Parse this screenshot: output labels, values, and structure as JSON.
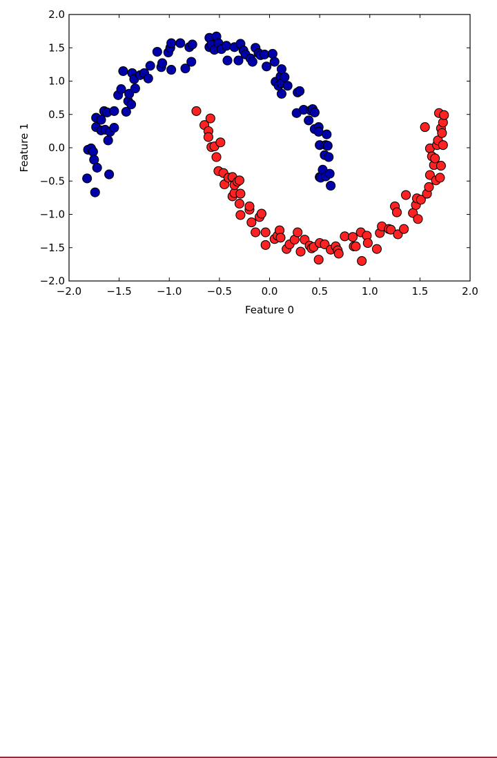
{
  "chart_data": {
    "type": "scatter",
    "title": "",
    "xlabel": "Feature 0",
    "ylabel": "Feature 1",
    "xlim": [
      -2.0,
      2.0
    ],
    "ylim": [
      -2.0,
      2.0
    ],
    "xticks": [
      "−2.0",
      "−1.5",
      "−1.0",
      "−0.5",
      "0.0",
      "0.5",
      "1.0",
      "1.5",
      "2.0"
    ],
    "yticks": [
      "2.0",
      "1.5",
      "1.0",
      "0.5",
      "0.0",
      "−0.5",
      "−1.0",
      "−1.5",
      "−2.0"
    ],
    "xtick_values": [
      -2.0,
      -1.5,
      -1.0,
      -0.5,
      0.0,
      0.5,
      1.0,
      1.5,
      2.0
    ],
    "ytick_values": [
      2.0,
      1.5,
      1.0,
      0.5,
      0.0,
      -0.5,
      -1.0,
      -1.5,
      -2.0
    ],
    "grid": false,
    "legend": "none",
    "series": [
      {
        "color": "#0000aa",
        "points": [
          [
            -1.81,
            -0.03
          ],
          [
            -1.78,
            -0.01
          ],
          [
            -1.76,
            -0.06
          ],
          [
            -1.75,
            -0.18
          ],
          [
            -1.82,
            -0.46
          ],
          [
            -1.74,
            -0.67
          ],
          [
            -1.72,
            -0.3
          ],
          [
            -1.6,
            -0.4
          ],
          [
            -1.73,
            0.45
          ],
          [
            -1.73,
            0.31
          ],
          [
            -1.68,
            0.26
          ],
          [
            -1.68,
            0.42
          ],
          [
            -1.64,
            0.27
          ],
          [
            -1.65,
            0.55
          ],
          [
            -1.62,
            0.53
          ],
          [
            -1.61,
            0.11
          ],
          [
            -1.59,
            0.24
          ],
          [
            -1.55,
            0.55
          ],
          [
            -1.55,
            0.3
          ],
          [
            -1.51,
            0.79
          ],
          [
            -1.48,
            0.88
          ],
          [
            -1.46,
            1.15
          ],
          [
            -1.43,
            0.54
          ],
          [
            -1.41,
            0.7
          ],
          [
            -1.4,
            0.81
          ],
          [
            -1.38,
            0.65
          ],
          [
            -1.37,
            1.12
          ],
          [
            -1.35,
            1.03
          ],
          [
            -1.34,
            0.89
          ],
          [
            -1.29,
            1.09
          ],
          [
            -1.25,
            1.12
          ],
          [
            -1.21,
            1.04
          ],
          [
            -1.19,
            1.23
          ],
          [
            -1.12,
            1.44
          ],
          [
            -1.08,
            1.21
          ],
          [
            -1.07,
            1.27
          ],
          [
            -1.01,
            1.43
          ],
          [
            -0.99,
            1.5
          ],
          [
            -0.98,
            1.57
          ],
          [
            -0.98,
            1.17
          ],
          [
            -0.89,
            1.57
          ],
          [
            -0.84,
            1.19
          ],
          [
            -0.8,
            1.51
          ],
          [
            -0.78,
            1.29
          ],
          [
            -0.77,
            1.55
          ],
          [
            -0.6,
            1.65
          ],
          [
            -0.6,
            1.51
          ],
          [
            -0.58,
            1.55
          ],
          [
            -0.55,
            1.47
          ],
          [
            -0.53,
            1.67
          ],
          [
            -0.51,
            1.57
          ],
          [
            -0.48,
            1.48
          ],
          [
            -0.43,
            1.53
          ],
          [
            -0.42,
            1.31
          ],
          [
            -0.35,
            1.51
          ],
          [
            -0.31,
            1.31
          ],
          [
            -0.29,
            1.56
          ],
          [
            -0.26,
            1.46
          ],
          [
            -0.24,
            1.4
          ],
          [
            -0.19,
            1.34
          ],
          [
            -0.17,
            1.29
          ],
          [
            -0.14,
            1.5
          ],
          [
            -0.11,
            1.42
          ],
          [
            -0.09,
            1.39
          ],
          [
            -0.05,
            1.4
          ],
          [
            -0.03,
            1.22
          ],
          [
            0.03,
            1.41
          ],
          [
            0.05,
            1.29
          ],
          [
            0.06,
            0.99
          ],
          [
            0.09,
            0.93
          ],
          [
            0.11,
            1.07
          ],
          [
            0.12,
            1.18
          ],
          [
            0.12,
            0.97
          ],
          [
            0.12,
            0.81
          ],
          [
            0.15,
            1.06
          ],
          [
            0.18,
            0.93
          ],
          [
            0.27,
            0.52
          ],
          [
            0.28,
            0.83
          ],
          [
            0.3,
            0.85
          ],
          [
            0.34,
            0.57
          ],
          [
            0.39,
            0.41
          ],
          [
            0.41,
            0.56
          ],
          [
            0.43,
            0.58
          ],
          [
            0.45,
            0.28
          ],
          [
            0.45,
            0.53
          ],
          [
            0.49,
            0.31
          ],
          [
            0.49,
            0.24
          ],
          [
            0.5,
            0.04
          ],
          [
            0.5,
            -0.44
          ],
          [
            0.51,
            -0.45
          ],
          [
            0.53,
            -0.33
          ],
          [
            0.55,
            -0.11
          ],
          [
            0.56,
            0.04
          ],
          [
            0.56,
            -0.43
          ],
          [
            0.57,
            0.2
          ],
          [
            0.58,
            0.03
          ],
          [
            0.59,
            -0.14
          ],
          [
            0.6,
            -0.39
          ],
          [
            0.61,
            -0.57
          ]
        ]
      },
      {
        "color": "#ff2222",
        "points": [
          [
            -0.73,
            0.55
          ],
          [
            -0.65,
            0.34
          ],
          [
            -0.61,
            0.25
          ],
          [
            -0.61,
            0.16
          ],
          [
            -0.59,
            0.44
          ],
          [
            -0.58,
            0.01
          ],
          [
            -0.55,
            0.02
          ],
          [
            -0.53,
            -0.14
          ],
          [
            -0.51,
            -0.35
          ],
          [
            -0.49,
            0.08
          ],
          [
            -0.46,
            -0.38
          ],
          [
            -0.45,
            -0.55
          ],
          [
            -0.41,
            -0.45
          ],
          [
            -0.37,
            -0.44
          ],
          [
            -0.37,
            -0.73
          ],
          [
            -0.35,
            -0.68
          ],
          [
            -0.35,
            -0.56
          ],
          [
            -0.32,
            -0.51
          ],
          [
            -0.3,
            -0.49
          ],
          [
            -0.3,
            -0.84
          ],
          [
            -0.29,
            -0.69
          ],
          [
            -0.29,
            -1.01
          ],
          [
            -0.2,
            -0.93
          ],
          [
            -0.2,
            -0.88
          ],
          [
            -0.18,
            -1.12
          ],
          [
            -0.14,
            -1.27
          ],
          [
            -0.1,
            -1.04
          ],
          [
            -0.08,
            -0.99
          ],
          [
            -0.04,
            -1.46
          ],
          [
            -0.04,
            -1.27
          ],
          [
            0.05,
            -1.37
          ],
          [
            0.08,
            -1.32
          ],
          [
            0.1,
            -1.24
          ],
          [
            0.11,
            -1.35
          ],
          [
            0.17,
            -1.52
          ],
          [
            0.2,
            -1.45
          ],
          [
            0.25,
            -1.38
          ],
          [
            0.28,
            -1.27
          ],
          [
            0.31,
            -1.56
          ],
          [
            0.35,
            -1.38
          ],
          [
            0.4,
            -1.47
          ],
          [
            0.42,
            -1.51
          ],
          [
            0.44,
            -1.49
          ],
          [
            0.49,
            -1.68
          ],
          [
            0.5,
            -1.43
          ],
          [
            0.55,
            -1.45
          ],
          [
            0.61,
            -1.53
          ],
          [
            0.66,
            -1.48
          ],
          [
            0.68,
            -1.54
          ],
          [
            0.69,
            -1.59
          ],
          [
            0.75,
            -1.33
          ],
          [
            0.83,
            -1.34
          ],
          [
            0.84,
            -1.48
          ],
          [
            0.86,
            -1.48
          ],
          [
            0.91,
            -1.27
          ],
          [
            0.92,
            -1.7
          ],
          [
            0.97,
            -1.32
          ],
          [
            0.98,
            -1.43
          ],
          [
            1.07,
            -1.52
          ],
          [
            1.1,
            -1.28
          ],
          [
            1.12,
            -1.18
          ],
          [
            1.19,
            -1.22
          ],
          [
            1.21,
            -1.23
          ],
          [
            1.25,
            -0.88
          ],
          [
            1.27,
            -0.97
          ],
          [
            1.28,
            -1.3
          ],
          [
            1.34,
            -1.22
          ],
          [
            1.36,
            -0.71
          ],
          [
            1.43,
            -0.98
          ],
          [
            1.46,
            -0.86
          ],
          [
            1.47,
            -0.76
          ],
          [
            1.48,
            -1.07
          ],
          [
            1.51,
            -0.78
          ],
          [
            1.55,
            0.31
          ],
          [
            1.57,
            -0.69
          ],
          [
            1.59,
            -0.59
          ],
          [
            1.6,
            -0.41
          ],
          [
            1.6,
            -0.01
          ],
          [
            1.62,
            -0.13
          ],
          [
            1.64,
            -0.26
          ],
          [
            1.65,
            -0.16
          ],
          [
            1.66,
            -0.49
          ],
          [
            1.67,
            0.04
          ],
          [
            1.68,
            0.11
          ],
          [
            1.69,
            0.52
          ],
          [
            1.7,
            -0.45
          ],
          [
            1.71,
            -0.27
          ],
          [
            1.71,
            0.29
          ],
          [
            1.72,
            0.22
          ],
          [
            1.73,
            0.38
          ],
          [
            1.73,
            0.04
          ],
          [
            1.74,
            0.49
          ]
        ]
      }
    ]
  }
}
